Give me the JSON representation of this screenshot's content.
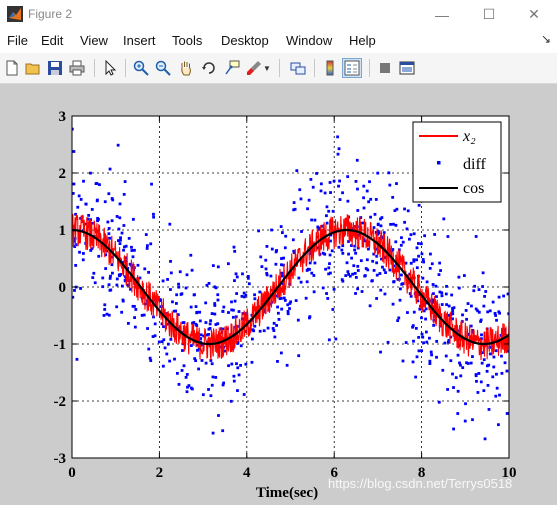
{
  "window": {
    "title": "Figure 2",
    "controls": [
      "—",
      "☐",
      "✕"
    ]
  },
  "menu": {
    "items": [
      "File",
      "Edit",
      "View",
      "Insert",
      "Tools",
      "Desktop",
      "Window",
      "Help"
    ],
    "overflow": "↘"
  },
  "toolbar": {
    "icons": [
      "new-figure-icon",
      "open-file-icon",
      "save-icon",
      "print-icon",
      "pointer-icon",
      "zoom-in-icon",
      "zoom-out-icon",
      "pan-hand-icon",
      "rotate-3d-icon",
      "data-cursor-icon",
      "brush-icon",
      "link-plot-icon",
      "colorbar-icon",
      "legend-icon",
      "hide-plot-tools-icon",
      "show-plot-tools-icon"
    ]
  },
  "colors": {
    "x2": "#ff0000",
    "diff": "#0000ff",
    "cos": "#000000",
    "figure_bg": "#cccccc"
  },
  "chart_data": {
    "type": "line",
    "xlabel": "Time(sec)",
    "ylabel": "",
    "xlim": [
      0,
      10
    ],
    "ylim": [
      -3,
      3
    ],
    "xticks": [
      0,
      2,
      4,
      6,
      8,
      10
    ],
    "yticks": [
      -3,
      -2,
      -1,
      0,
      1,
      2,
      3
    ],
    "grid": "dotted",
    "legend_position": "top-right",
    "series": [
      {
        "name": "x_2",
        "label": "x₂",
        "style": "line",
        "color": "#ff0000",
        "description": "cos(t) plus high-frequency noise of amplitude about 0.3, sampled every 0.01 s"
      },
      {
        "name": "diff",
        "label": "diff",
        "style": "points",
        "color": "#0000ff",
        "description": "scattered points around cos(t) with spread of about ±1.5"
      },
      {
        "name": "cos",
        "label": "cos",
        "style": "line",
        "color": "#000000",
        "x": [
          0,
          1,
          2,
          3,
          3.14,
          4,
          5,
          6,
          6.28,
          7,
          8,
          9,
          9.42,
          10
        ],
        "y": [
          1,
          0.54,
          -0.42,
          -0.99,
          -1,
          -0.65,
          0.28,
          0.96,
          1,
          0.75,
          -0.15,
          -0.91,
          -1,
          -0.84
        ]
      }
    ]
  },
  "watermark": "https://blog.csdn.net/Terrys0518"
}
